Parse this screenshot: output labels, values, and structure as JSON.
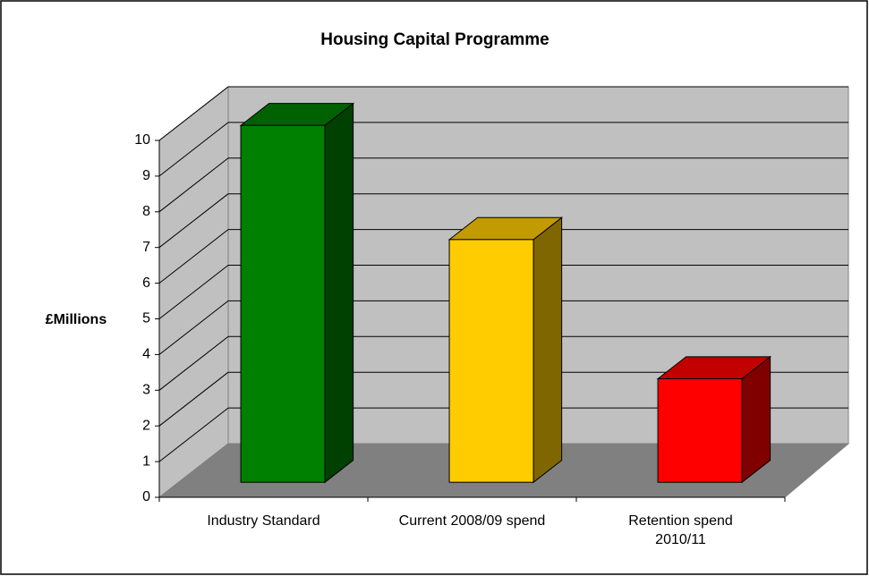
{
  "chart_data": {
    "type": "bar3d",
    "title": "Housing Capital Programme",
    "y_label": "£Millions",
    "categories": [
      "Industry Standard",
      "Current 2008/09 spend",
      "Retention spend\n2010/11"
    ],
    "values": [
      10,
      6.8,
      2.9
    ],
    "colors": [
      "#008000",
      "#ffcc00",
      "#ff0000"
    ],
    "ylim": [
      0,
      10
    ],
    "yticks": [
      0,
      1,
      2,
      3,
      4,
      5,
      6,
      7,
      8,
      9,
      10
    ],
    "grid": true
  }
}
